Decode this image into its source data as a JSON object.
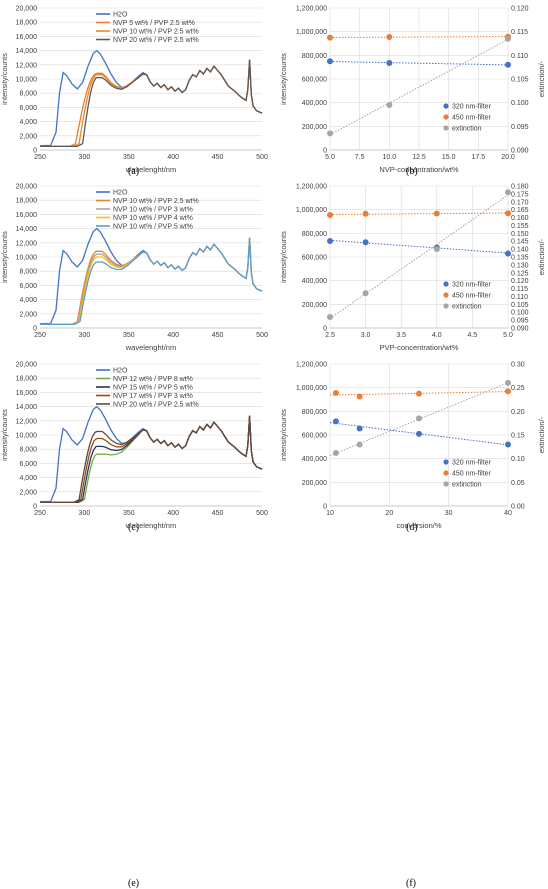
{
  "chart_data": [
    {
      "id": "a",
      "type": "line",
      "label": "(a)",
      "xlabel": "wavelenght/nm",
      "ylabel": "intensity/counts",
      "xlim": [
        250,
        500
      ],
      "ylim": [
        0,
        20000
      ],
      "xticks": [
        "250",
        "300",
        "350",
        "400",
        "450",
        "500"
      ],
      "yticks": [
        "0",
        "2,000",
        "4,000",
        "6,000",
        "8,000",
        "10,000",
        "12,000",
        "14,000",
        "16,000",
        "18,000",
        "20,000"
      ],
      "legend": "top-left",
      "series": [
        {
          "name": "H2O",
          "color": "#4472c4",
          "template": "h2o"
        },
        {
          "name": "NVP 5 wt% / PVP 2.5 wt%",
          "color": "#ed7d31",
          "template": "sample",
          "onset": 290,
          "peak": 10800
        },
        {
          "name": "NVP 10 wt% / PVP 2.5 wt%",
          "color": "#e8891e",
          "template": "sample",
          "onset": 294,
          "peak": 10600
        },
        {
          "name": "NVP 20 wt% / PVP 2.5 wt%",
          "color": "#595959",
          "template": "sample",
          "onset": 298,
          "peak": 10200
        }
      ]
    },
    {
      "id": "b",
      "type": "scatter",
      "label": "(b)",
      "xlabel": "NVP-concentration/wt%",
      "ylabel": "intensity/counts",
      "y2label": "extinction/-",
      "xlim": [
        5,
        20
      ],
      "ylim": [
        0,
        1200000
      ],
      "y2lim": [
        0.09,
        0.12
      ],
      "xticks": [
        "5.0",
        "10.0",
        "15.0",
        "20.0"
      ],
      "xtickvals": [
        5,
        10,
        15,
        20
      ],
      "xticks_all": [
        "5.0",
        "7.5",
        "10.0",
        "12.5",
        "15.0",
        "17.5",
        "20.0"
      ],
      "yticks": [
        "0",
        "200,000",
        "400,000",
        "600,000",
        "800,000",
        "1,000,000",
        "1,200,000"
      ],
      "y2ticks": [
        "0.090",
        "0.095",
        "0.100",
        "0.105",
        "0.110",
        "0.115",
        "0.120"
      ],
      "legend": "bottom-right",
      "series": [
        {
          "name": "320 nm-filter",
          "color": "#4472c4",
          "axis": "y",
          "x": [
            5,
            10,
            20
          ],
          "y": [
            750000,
            735000,
            720000
          ]
        },
        {
          "name": "450 nm-filter",
          "color": "#ed7d31",
          "axis": "y",
          "x": [
            5,
            10,
            20
          ],
          "y": [
            950000,
            955000,
            958000
          ]
        },
        {
          "name": "extinction",
          "color": "#a5a5a5",
          "axis": "y2",
          "x": [
            5,
            10,
            20
          ],
          "y": [
            0.0935,
            0.0995,
            0.1135
          ]
        }
      ]
    },
    {
      "id": "c",
      "type": "line",
      "label": "(c)",
      "xlabel": "wavelenght/nm",
      "ylabel": "intensity/counts",
      "xlim": [
        250,
        500
      ],
      "ylim": [
        0,
        20000
      ],
      "xticks": [
        "250",
        "300",
        "350",
        "400",
        "450",
        "500"
      ],
      "yticks": [
        "0",
        "2,000",
        "4,000",
        "6,000",
        "8,000",
        "10,000",
        "12,000",
        "14,000",
        "16,000",
        "18,000",
        "20,000"
      ],
      "legend": "top-left",
      "series": [
        {
          "name": "H2O",
          "color": "#4472c4",
          "template": "h2o"
        },
        {
          "name": "NVP 10 wt% / PVP 2.5 wt%",
          "color": "#ed7d31",
          "template": "sample",
          "onset": 292,
          "peak": 10800
        },
        {
          "name": "NVP 10 wt% / PVP 3 wt%",
          "color": "#a5a5a5",
          "template": "sample",
          "onset": 293,
          "peak": 10400
        },
        {
          "name": "NVP 10 wt% / PVP 4 wt%",
          "color": "#ffc000",
          "template": "sample",
          "onset": 294,
          "peak": 10000
        },
        {
          "name": "NVP 10 wt% / PVP 5 wt%",
          "color": "#5b9bd5",
          "template": "sample",
          "onset": 295,
          "peak": 9300
        }
      ]
    },
    {
      "id": "d",
      "type": "scatter",
      "label": "(d)",
      "xlabel": "PVP-concentration/wt%",
      "ylabel": "intensity/counts",
      "y2label": "extinction/-",
      "xlim": [
        2.5,
        5
      ],
      "ylim": [
        0,
        1200000
      ],
      "y2lim": [
        0.09,
        0.18
      ],
      "xticks_all": [
        "2.5",
        "3.0",
        "3.5",
        "4.0",
        "4.5",
        "5.0"
      ],
      "yticks": [
        "0",
        "200,000",
        "400,000",
        "600,000",
        "800,000",
        "1,000,000",
        "1,200,000"
      ],
      "y2ticks": [
        "0.090",
        "0.105",
        "0.120",
        "0.135",
        "0.150",
        "0.165",
        "0.180"
      ],
      "y2ticks_all": [
        "0.090",
        "0.095",
        "0.100",
        "0.105",
        "0.110",
        "0.115",
        "0.120",
        "0.125",
        "0.130",
        "0.135",
        "0.140",
        "0.145",
        "0.150",
        "0.155",
        "0.160",
        "0.165",
        "0.170",
        "0.175",
        "0.180"
      ],
      "legend": "bottom-right",
      "series": [
        {
          "name": "320 nm-filter",
          "color": "#4472c4",
          "axis": "y",
          "x": [
            2.5,
            3,
            4,
            5
          ],
          "y": [
            735000,
            725000,
            680000,
            630000
          ]
        },
        {
          "name": "450 nm-filter",
          "color": "#ed7d31",
          "axis": "y",
          "x": [
            2.5,
            3,
            4,
            5
          ],
          "y": [
            955000,
            965000,
            968000,
            970000
          ]
        },
        {
          "name": "extinction",
          "color": "#a5a5a5",
          "axis": "y2",
          "x": [
            2.5,
            3,
            4,
            5
          ],
          "y": [
            0.097,
            0.112,
            0.14,
            0.176
          ]
        }
      ]
    },
    {
      "id": "e",
      "type": "line",
      "label": "(e)",
      "xlabel": "wavelenght/nm",
      "ylabel": "intensity/counts",
      "xlim": [
        250,
        500
      ],
      "ylim": [
        0,
        20000
      ],
      "xticks": [
        "250",
        "300",
        "350",
        "400",
        "450",
        "500"
      ],
      "yticks": [
        "0",
        "2,000",
        "4,000",
        "6,000",
        "8,000",
        "10,000",
        "12,000",
        "14,000",
        "16,000",
        "18,000",
        "20,000"
      ],
      "legend": "top-left",
      "series": [
        {
          "name": "H2O",
          "color": "#4472c4",
          "template": "h2o"
        },
        {
          "name": "NVP 12 wt% / PVP 8 wt%",
          "color": "#70ad47",
          "template": "sample",
          "onset": 300,
          "peak": 7300
        },
        {
          "name": "NVP 15 wt% / PVP 5 wt%",
          "color": "#1f3864",
          "template": "sample",
          "onset": 298,
          "peak": 8400
        },
        {
          "name": "NVP 17 wt% / PVP 3 wt%",
          "color": "#9e480e",
          "template": "sample",
          "onset": 296,
          "peak": 9500
        },
        {
          "name": "NVP 20 wt% / PVP 2.5 wt%",
          "color": "#5e4a42",
          "template": "sample",
          "onset": 294,
          "peak": 10500
        }
      ]
    },
    {
      "id": "f",
      "type": "scatter",
      "label": "(f)",
      "xlabel": "conversion/%",
      "ylabel": "intensity/counts",
      "y2label": "extinction/-",
      "xlim": [
        10,
        40
      ],
      "ylim": [
        0,
        1200000
      ],
      "y2lim": [
        0,
        0.3
      ],
      "xticks_all": [
        "10",
        "20",
        "30",
        "40"
      ],
      "yticks": [
        "0",
        "200,000",
        "400,000",
        "600,000",
        "800,000",
        "1,000,000",
        "1,200,000"
      ],
      "y2ticks_all": [
        "0.00",
        "0.05",
        "0.10",
        "0.15",
        "0.20",
        "0.25",
        "0.30"
      ],
      "legend": "bottom-right",
      "series": [
        {
          "name": "320 nm-filter",
          "color": "#4472c4",
          "axis": "y",
          "x": [
            11,
            15,
            25,
            40
          ],
          "y": [
            715000,
            655000,
            610000,
            520000
          ]
        },
        {
          "name": "450 nm-filter",
          "color": "#ed7d31",
          "axis": "y",
          "x": [
            11,
            15,
            25,
            40
          ],
          "y": [
            955000,
            925000,
            950000,
            970000
          ]
        },
        {
          "name": "extinction",
          "color": "#a5a5a5",
          "axis": "y2",
          "x": [
            11,
            15,
            25,
            40
          ],
          "y": [
            0.112,
            0.13,
            0.185,
            0.26
          ]
        }
      ]
    }
  ]
}
